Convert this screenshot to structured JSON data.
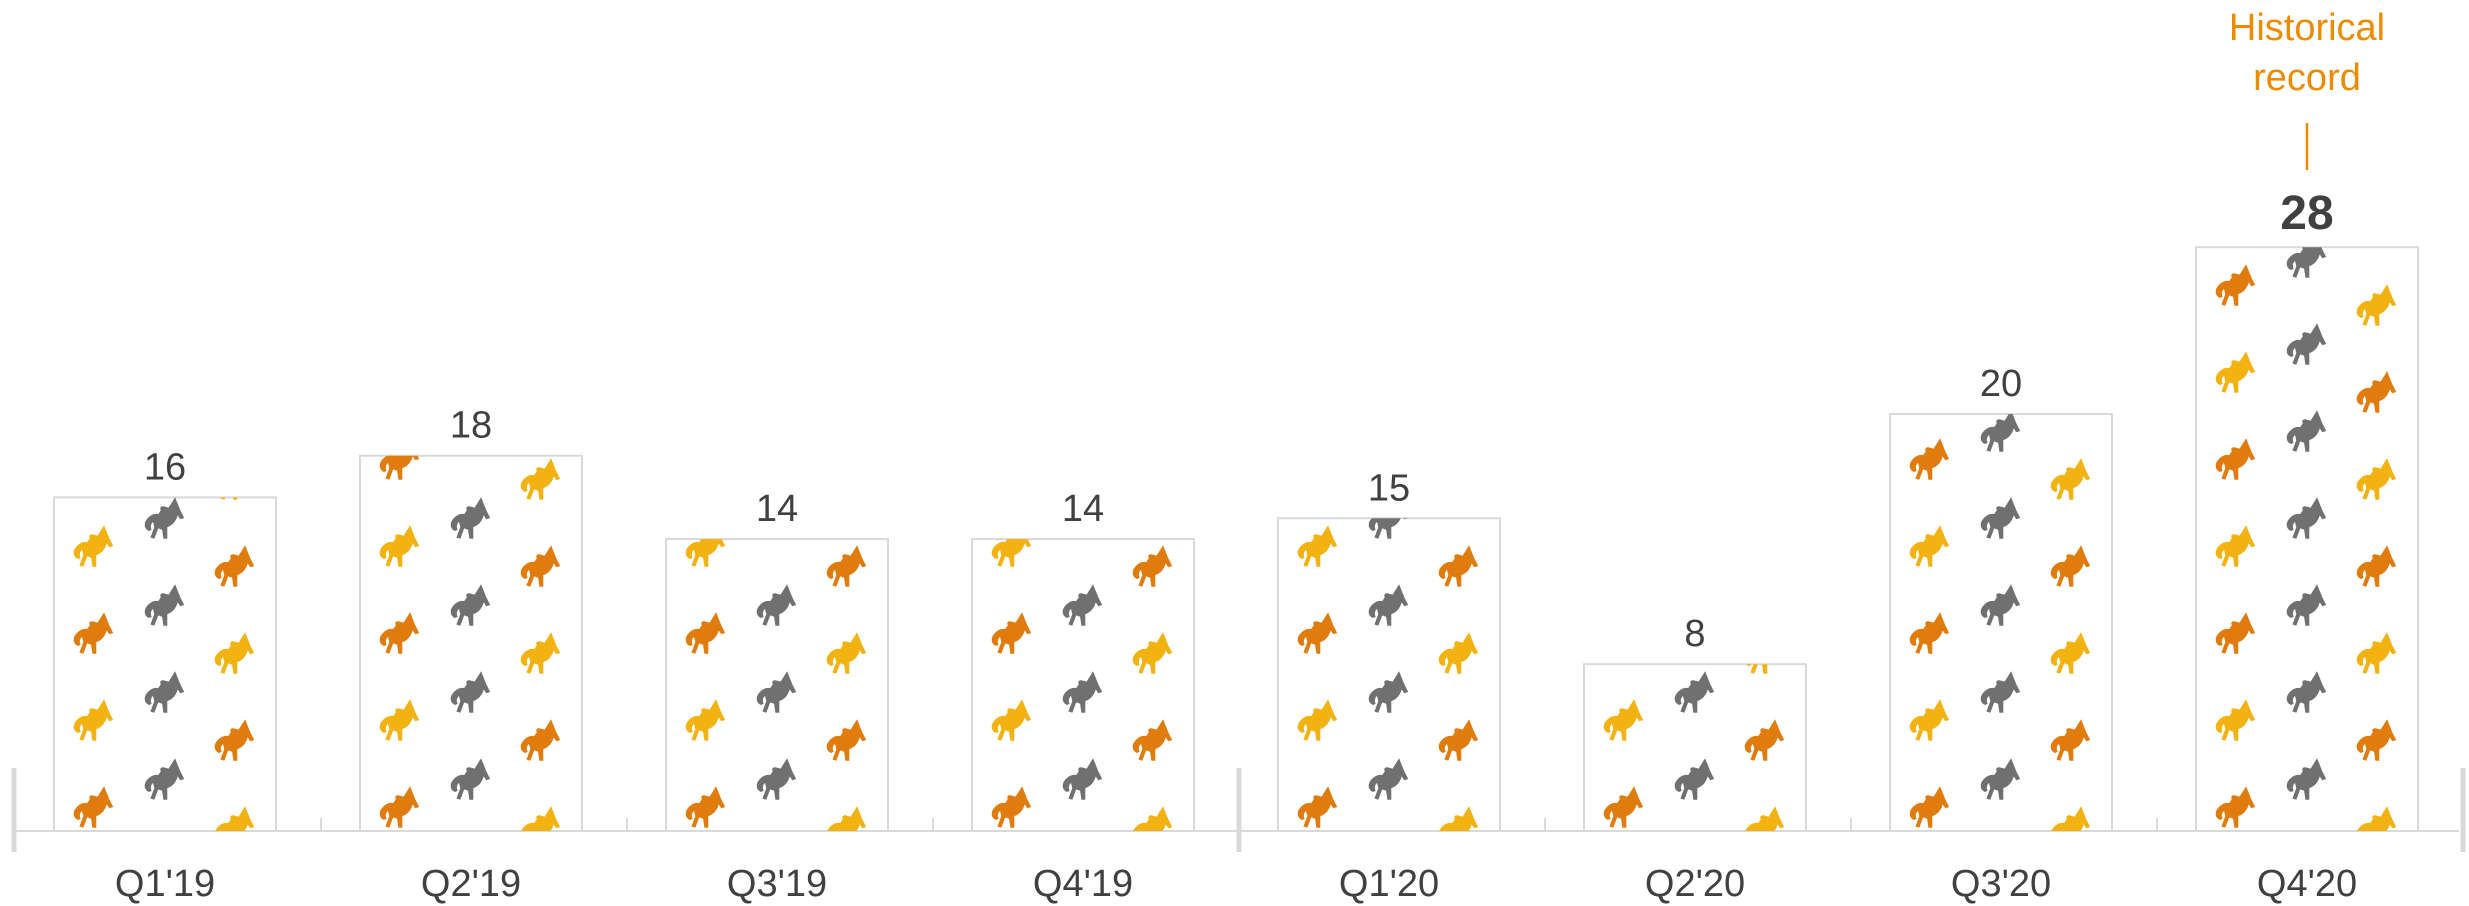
{
  "chart_data": {
    "type": "bar",
    "categories": [
      "Q1'19",
      "Q2'19",
      "Q3'19",
      "Q4'19",
      "Q1'20",
      "Q2'20",
      "Q3'20",
      "Q4'20"
    ],
    "values": [
      16,
      18,
      14,
      14,
      15,
      8,
      20,
      28
    ],
    "title": "",
    "xlabel": "",
    "ylabel": "",
    "ylim": [
      0,
      28
    ],
    "grid": false,
    "legend": "none",
    "bar_fill": "unicorn-icon pattern",
    "highlight": {
      "category": "Q4'20",
      "annotation": "Historical record"
    }
  },
  "colors": {
    "label": "#404040",
    "accent": "#ED8B00",
    "icon_orange": "#E07B0E",
    "icon_gold": "#F2B312",
    "icon_gray": "#707070",
    "bar_border": "#D9D9D9",
    "axis": "#D9D9D9"
  }
}
